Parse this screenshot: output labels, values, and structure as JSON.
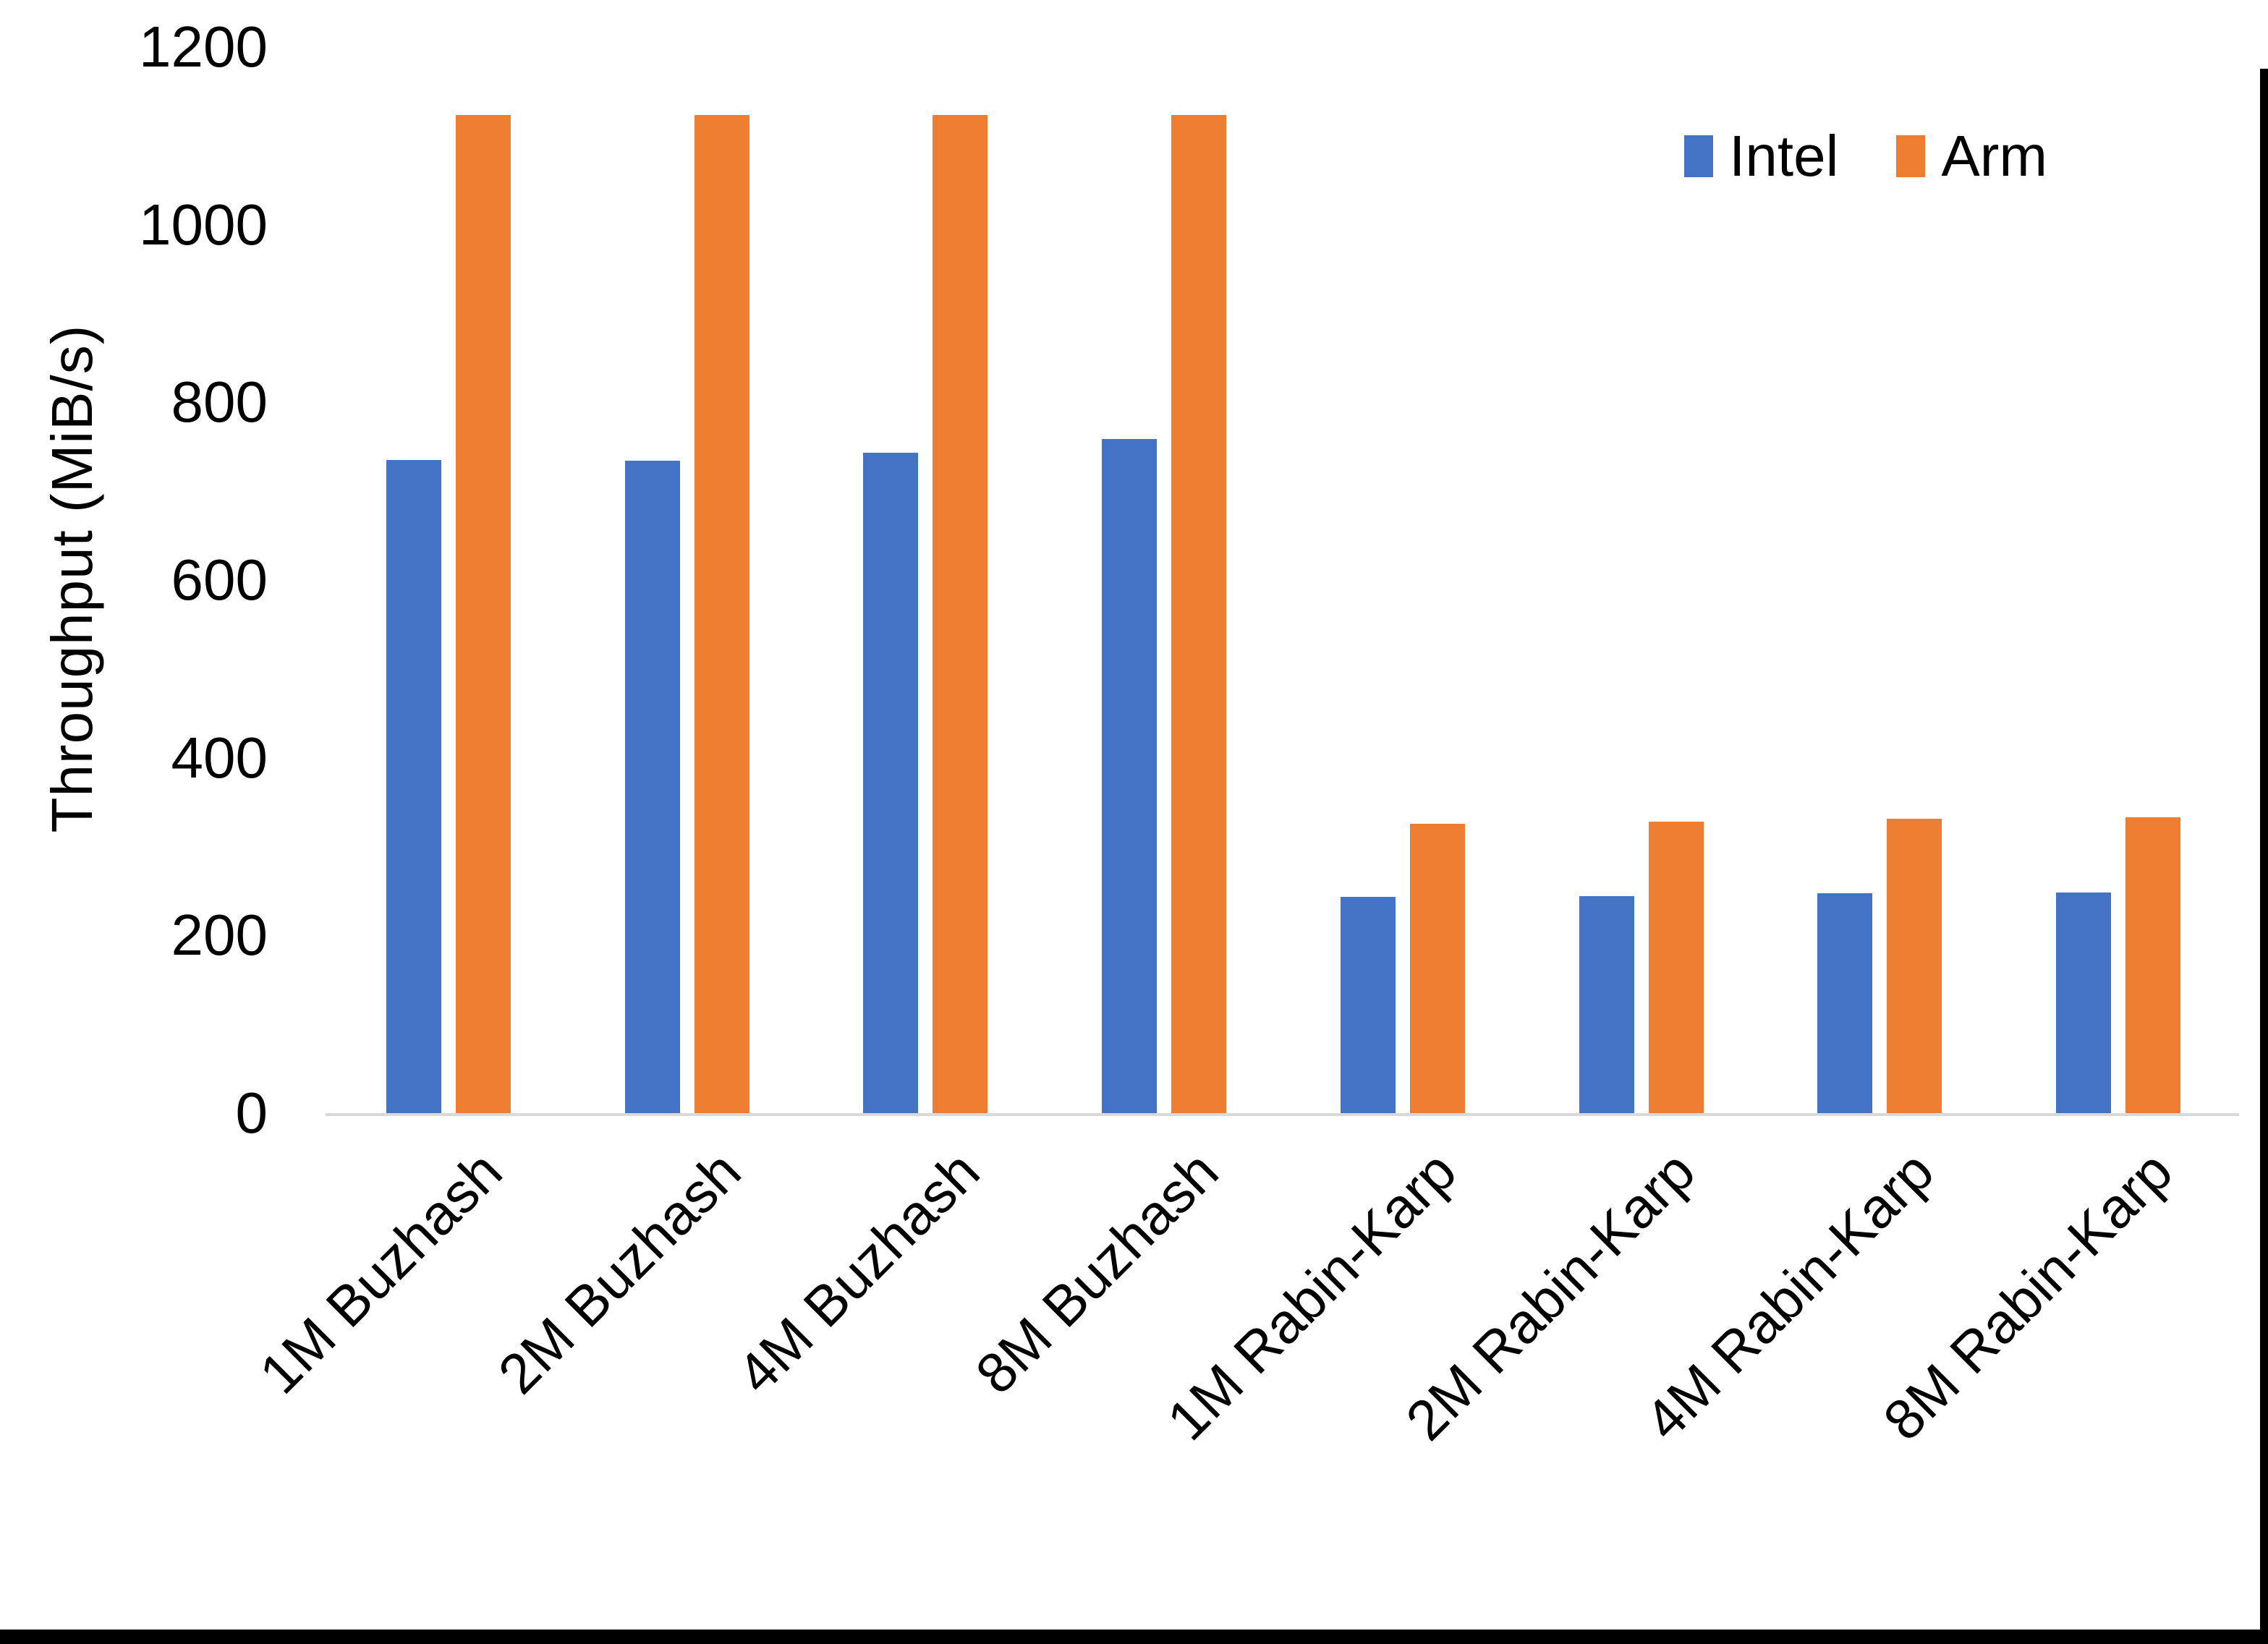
{
  "chart_data": {
    "type": "bar",
    "title": "",
    "xlabel": "",
    "ylabel": "Throughput (MiB/s)",
    "ylim": [
      0,
      1200
    ],
    "yticks": [
      0,
      200,
      400,
      600,
      800,
      1000,
      1200
    ],
    "grid": false,
    "legend_position": "top-right",
    "categories": [
      "1M Buzhash",
      "2M Buzhash",
      "4M Buzhash",
      "8M Buzhash",
      "1M Rabin-Karp",
      "2M Rabin-Karp",
      "4M Rabin-Karp",
      "8M Rabin-Karp"
    ],
    "series": [
      {
        "name": "Intel",
        "color": "#4472C4",
        "values": [
          737,
          736,
          745,
          760,
          245,
          246,
          249,
          250
        ]
      },
      {
        "name": "Arm",
        "color": "#ED7D31",
        "values": [
          1125,
          1125,
          1125,
          1125,
          327,
          330,
          333,
          335
        ]
      }
    ],
    "axis_line_color": "#D9D9D9",
    "text_color": "#000000",
    "background_color": "#FFFFFF",
    "frame": {
      "bottom_bar_color": "#000000",
      "right_bar_color": "#000000"
    }
  }
}
